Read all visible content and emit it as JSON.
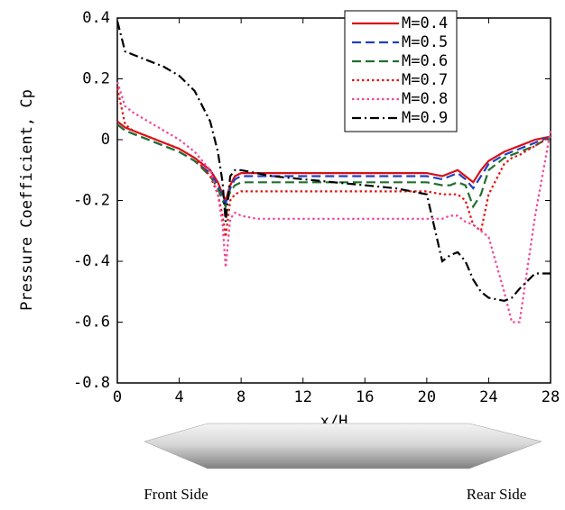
{
  "chart_data": {
    "type": "line",
    "y_label": "Pressure Coefficient, Cp",
    "x_label": "x/H",
    "annotations": [
      "Front Side",
      "Rear Side"
    ],
    "x": [
      0,
      0.5,
      1,
      2,
      3,
      4,
      5,
      6,
      6.5,
      6.8,
      7,
      7.3,
      7.6,
      8,
      9,
      10,
      12,
      14,
      16,
      18,
      20,
      21,
      21.5,
      22,
      22.5,
      23,
      23.5,
      24,
      25,
      25.5,
      26,
      27,
      28
    ],
    "xlim": [
      0,
      28
    ],
    "xticks": [
      0,
      4,
      8,
      12,
      16,
      20,
      24,
      28
    ],
    "ylim": [
      -0.8,
      0.4
    ],
    "yticks": [
      0.4,
      0.2,
      0,
      -0.2,
      -0.4,
      -0.6,
      -0.8
    ],
    "legend": "upper right",
    "series": [
      {
        "name": "M=0.4",
        "color": "#d81018",
        "dash": "solid",
        "values": [
          0.06,
          0.04,
          0.03,
          0.01,
          -0.01,
          -0.03,
          -0.06,
          -0.1,
          -0.14,
          -0.18,
          -0.2,
          -0.15,
          -0.12,
          -0.11,
          -0.11,
          -0.11,
          -0.11,
          -0.11,
          -0.11,
          -0.11,
          -0.11,
          -0.12,
          -0.11,
          -0.1,
          -0.12,
          -0.14,
          -0.1,
          -0.07,
          -0.04,
          -0.03,
          -0.02,
          0,
          0.01
        ]
      },
      {
        "name": "M=0.5",
        "color": "#2040c0",
        "dash": "dashed",
        "values": [
          0.05,
          0.03,
          0.02,
          0,
          -0.02,
          -0.04,
          -0.07,
          -0.11,
          -0.15,
          -0.19,
          -0.21,
          -0.16,
          -0.13,
          -0.12,
          -0.12,
          -0.12,
          -0.12,
          -0.12,
          -0.12,
          -0.12,
          -0.12,
          -0.13,
          -0.12,
          -0.11,
          -0.13,
          -0.16,
          -0.12,
          -0.08,
          -0.05,
          -0.04,
          -0.03,
          -0.01,
          0.01
        ]
      },
      {
        "name": "M=0.6",
        "color": "#207030",
        "dash": "dashed",
        "values": [
          0.05,
          0.03,
          0.02,
          0,
          -0.02,
          -0.04,
          -0.07,
          -0.12,
          -0.16,
          -0.2,
          -0.22,
          -0.17,
          -0.15,
          -0.14,
          -0.14,
          -0.14,
          -0.14,
          -0.14,
          -0.14,
          -0.14,
          -0.14,
          -0.15,
          -0.15,
          -0.14,
          -0.15,
          -0.22,
          -0.18,
          -0.1,
          -0.06,
          -0.05,
          -0.04,
          -0.02,
          0.01
        ]
      },
      {
        "name": "M=0.7",
        "color": "#e81010",
        "dash": "dotted",
        "values": [
          0.17,
          0.05,
          0.03,
          0.01,
          -0.01,
          -0.03,
          -0.06,
          -0.12,
          -0.18,
          -0.25,
          -0.32,
          -0.2,
          -0.18,
          -0.17,
          -0.17,
          -0.17,
          -0.17,
          -0.17,
          -0.17,
          -0.17,
          -0.17,
          -0.18,
          -0.18,
          -0.18,
          -0.2,
          -0.28,
          -0.3,
          -0.18,
          -0.08,
          -0.06,
          -0.05,
          -0.02,
          0.01
        ]
      },
      {
        "name": "M=0.8",
        "color": "#f04898",
        "dash": "dotted",
        "values": [
          0.19,
          0.11,
          0.09,
          0.06,
          0.03,
          0,
          -0.04,
          -0.1,
          -0.18,
          -0.28,
          -0.42,
          -0.26,
          -0.24,
          -0.25,
          -0.26,
          -0.26,
          -0.26,
          -0.26,
          -0.26,
          -0.26,
          -0.26,
          -0.26,
          -0.25,
          -0.25,
          -0.27,
          -0.28,
          -0.3,
          -0.32,
          -0.5,
          -0.6,
          -0.6,
          -0.25,
          0.03
        ]
      },
      {
        "name": "M=0.9",
        "color": "#000000",
        "dash": "dashdot",
        "values": [
          0.39,
          0.29,
          0.28,
          0.26,
          0.24,
          0.21,
          0.16,
          0.06,
          -0.04,
          -0.14,
          -0.27,
          -0.12,
          -0.1,
          -0.1,
          -0.11,
          -0.12,
          -0.13,
          -0.14,
          -0.15,
          -0.16,
          -0.18,
          -0.4,
          -0.38,
          -0.37,
          -0.4,
          -0.46,
          -0.5,
          -0.52,
          -0.53,
          -0.52,
          -0.49,
          -0.44,
          -0.44
        ]
      }
    ]
  }
}
